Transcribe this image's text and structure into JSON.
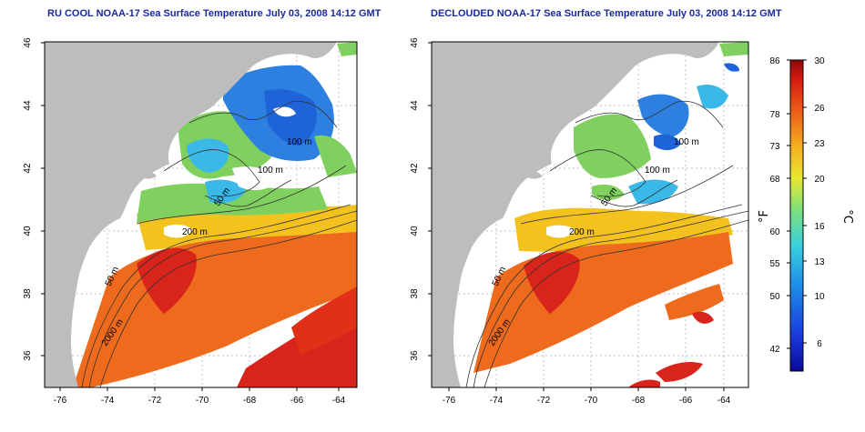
{
  "maps": [
    {
      "title": "RU COOL NOAA-17 Sea Surface Temperature July 03, 2008 14:12 GMT",
      "contour_labels": [
        "100 m",
        "100 m",
        "50 m",
        "200 m",
        "50 m",
        "2000 m"
      ]
    },
    {
      "title": "DECLOUDED NOAA-17 Sea Surface Temperature July 03, 2008 14:12 GMT",
      "contour_labels": [
        "100 m",
        "100 m",
        "50 m",
        "200 m",
        "50 m",
        "2000 m"
      ]
    }
  ],
  "axes": {
    "lon_ticks": [
      "-76",
      "-74",
      "-72",
      "-70",
      "-68",
      "-66",
      "-64"
    ],
    "lat_ticks": [
      "36",
      "38",
      "40",
      "42",
      "44",
      "46"
    ]
  },
  "colorbar": {
    "unit_f": "°F",
    "unit_c": "°C",
    "f_ticks": [
      "86",
      "78",
      "73",
      "68",
      "60",
      "55",
      "50",
      "42"
    ],
    "c_ticks": [
      "30",
      "26",
      "23",
      "20",
      "16",
      "13",
      "10",
      "6"
    ]
  },
  "colors": {
    "land": "#bdbdbd",
    "title": "#1a2a9c",
    "warm": "#d8241a",
    "orange": "#ee6a1c",
    "yellow": "#f4c21f",
    "green": "#80d060",
    "cyan": "#3ab8e8",
    "blue": "#1e64d8"
  }
}
